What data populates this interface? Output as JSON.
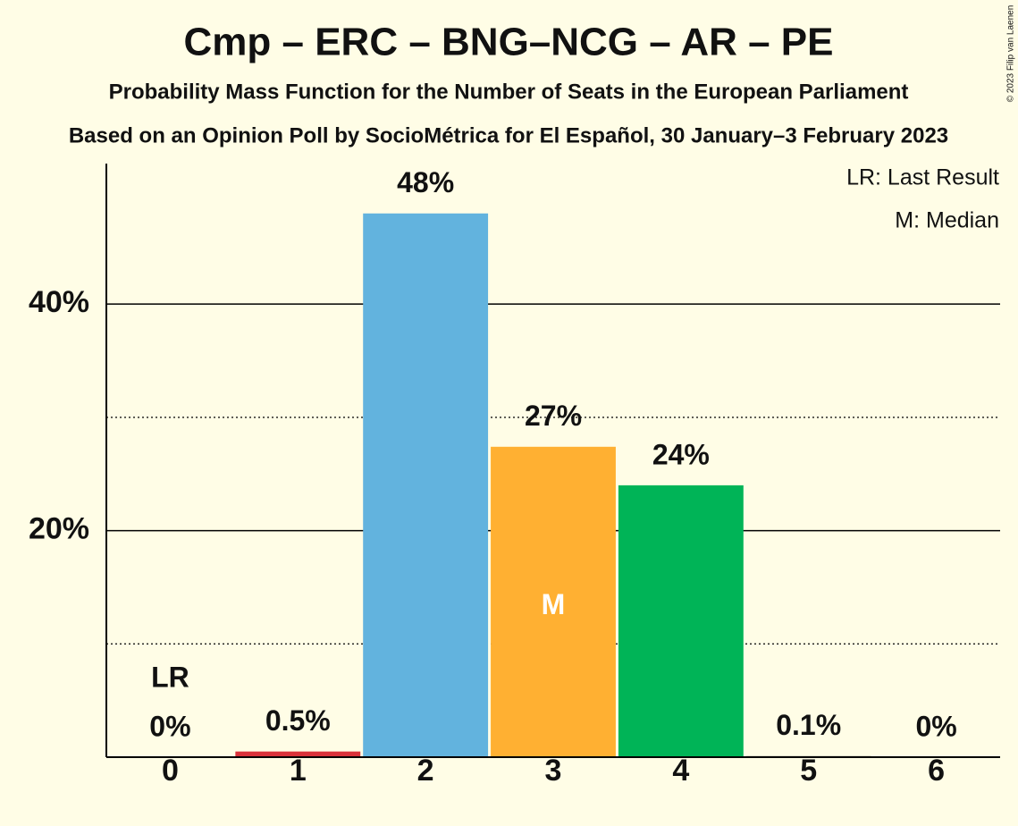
{
  "chart_data": {
    "type": "bar",
    "title": "Cmp – ERC – BNG–NCG – AR – PE",
    "subtitle": "Probability Mass Function for the Number of Seats in the European Parliament",
    "subtitle2": "Based on an Opinion Poll by SocioMétrica for El Español, 30 January–3 February 2023",
    "categories": [
      "0",
      "1",
      "2",
      "3",
      "4",
      "5",
      "6"
    ],
    "values": [
      0,
      0.5,
      48,
      27.4,
      24,
      0.1,
      0
    ],
    "value_labels": [
      "0%",
      "0.5%",
      "48%",
      "27%",
      "24%",
      "0.1%",
      "0%"
    ],
    "colors": [
      "#d9323a",
      "#d9323a",
      "#62b3de",
      "#ffb032",
      "#00b457",
      "#888888",
      "#888888"
    ],
    "ylim": [
      0,
      52.4
    ],
    "yticks": [
      {
        "value": 20,
        "label": "20%"
      },
      {
        "value": 40,
        "label": "40%"
      }
    ],
    "minor_yticks": [
      10,
      30
    ],
    "grid": true,
    "annotations": {
      "last_result": {
        "text": "LR",
        "category": 0
      },
      "median": {
        "text": "M",
        "category": 3
      }
    },
    "legend": [
      "LR: Last Result",
      "M: Median"
    ],
    "copyright": "© 2023 Filip van Laenen"
  }
}
